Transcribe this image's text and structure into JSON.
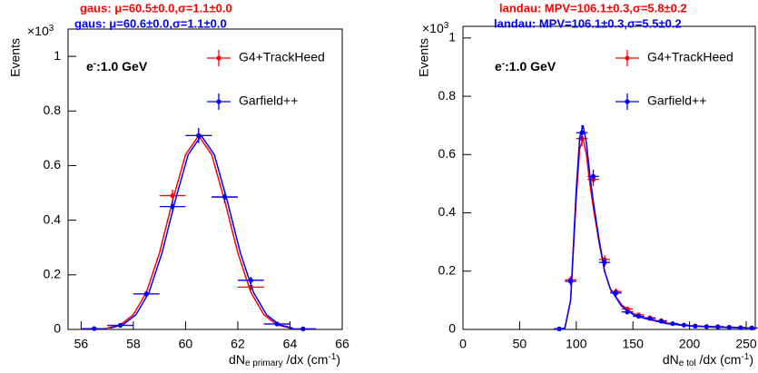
{
  "chart_data": [
    {
      "type": "errorbar",
      "ylabel": "Events",
      "xlabel": [
        "dN",
        "e primary",
        " /dx (cm",
        "-1",
        ")"
      ],
      "y_multiplier": [
        "×10",
        "3"
      ],
      "annotation": [
        "e",
        "-",
        ":1.0 GeV"
      ],
      "xlim": [
        55.5,
        66
      ],
      "xticks": [
        56,
        58,
        60,
        62,
        64,
        66
      ],
      "ylim": [
        0,
        1.1
      ],
      "yticks": [
        0,
        0.2,
        0.4,
        0.6,
        0.8,
        1
      ],
      "series": [
        {
          "name": "G4+TrackHeed",
          "color": "#ff0000",
          "fit_label": "gaus: μ=60.5±0.0,σ=1.1±0.0",
          "xerr": 0.5,
          "x": [
            56.5,
            57.5,
            58.5,
            59.5,
            60.5,
            61.5,
            62.5,
            63.5,
            64.5
          ],
          "values": [
            0.003,
            0.015,
            0.13,
            0.49,
            0.71,
            0.485,
            0.155,
            0.02,
            0.002
          ],
          "errors": [
            0.002,
            0.004,
            0.011,
            0.022,
            0.027,
            0.022,
            0.012,
            0.004,
            0.001
          ],
          "fit": {
            "x": [
              57,
              57.5,
              58,
              58.5,
              59,
              59.5,
              60,
              60.5,
              61,
              61.5,
              62,
              62.5,
              63,
              63.5,
              64
            ],
            "values": [
              0.005,
              0.017,
              0.054,
              0.136,
              0.28,
              0.47,
              0.64,
              0.71,
              0.64,
              0.47,
              0.28,
              0.136,
              0.054,
              0.017,
              0.005
            ]
          }
        },
        {
          "name": "Garfield++",
          "color": "#0000ff",
          "fit_label": "gaus: μ=60.6±0.0,σ=1.1±0.0",
          "xerr": 0.5,
          "x": [
            56.5,
            57.5,
            58.5,
            59.5,
            60.5,
            61.5,
            62.5,
            63.5,
            64.5
          ],
          "values": [
            0.003,
            0.015,
            0.13,
            0.45,
            0.71,
            0.485,
            0.18,
            0.02,
            0.002
          ],
          "errors": [
            0.002,
            0.004,
            0.011,
            0.021,
            0.027,
            0.022,
            0.013,
            0.004,
            0.001
          ],
          "fit": {
            "x": [
              57.1,
              57.6,
              58.1,
              58.6,
              59.1,
              59.6,
              60.1,
              60.6,
              61.1,
              61.6,
              62.1,
              62.6,
              63.1,
              63.6,
              64.1
            ],
            "values": [
              0.005,
              0.017,
              0.054,
              0.136,
              0.28,
              0.47,
              0.64,
              0.71,
              0.64,
              0.47,
              0.28,
              0.136,
              0.054,
              0.017,
              0.005
            ]
          }
        }
      ]
    },
    {
      "type": "errorbar",
      "ylabel": "Events",
      "xlabel": [
        "dN",
        "e tol",
        " /dx (cm",
        "-1",
        ")"
      ],
      "y_multiplier": [
        "×10",
        "3"
      ],
      "annotation": [
        "e",
        "-",
        ":1.0 GeV"
      ],
      "xlim": [
        0,
        258
      ],
      "xticks": [
        0,
        50,
        100,
        150,
        200,
        250
      ],
      "ylim": [
        0,
        1.04
      ],
      "yticks": [
        0,
        0.2,
        0.4,
        0.6,
        0.8,
        1
      ],
      "series": [
        {
          "name": "G4+TrackHeed",
          "color": "#ff0000",
          "fit_label": "landau: MPV=106.1±0.3,σ=5.8±0.2",
          "xerr": 5,
          "x": [
            85,
            95,
            105,
            115,
            125,
            135,
            145,
            155,
            165,
            175,
            185,
            195,
            205,
            215,
            225,
            235,
            245,
            255
          ],
          "values": [
            0.002,
            0.17,
            0.655,
            0.515,
            0.24,
            0.13,
            0.07,
            0.05,
            0.04,
            0.03,
            0.02,
            0.015,
            0.012,
            0.01,
            0.01,
            0.008,
            0.006,
            0.005
          ],
          "errors": [
            0.001,
            0.013,
            0.026,
            0.023,
            0.015,
            0.011,
            0.008,
            0.007,
            0.006,
            0.005,
            0.004,
            0.004,
            0.003,
            0.003,
            0.003,
            0.003,
            0.002,
            0.002
          ],
          "fit": {
            "x": [
              85,
              90,
              95,
              100,
              103,
              106,
              109,
              112,
              115,
              120,
              125,
              130,
              140,
              150,
              160,
              180,
              200,
              220,
              250
            ],
            "values": [
              0,
              0.005,
              0.1,
              0.45,
              0.62,
              0.655,
              0.6,
              0.5,
              0.42,
              0.3,
              0.2,
              0.14,
              0.085,
              0.055,
              0.04,
              0.022,
              0.013,
              0.009,
              0.006
            ]
          }
        },
        {
          "name": "Garfield++",
          "color": "#0000ff",
          "fit_label": "landau: MPV=106.1±0.3,σ=5.5±0.2",
          "xerr": 5,
          "x": [
            85,
            95,
            105,
            115,
            125,
            135,
            145,
            155,
            165,
            175,
            185,
            195,
            205,
            215,
            225,
            235,
            245,
            255
          ],
          "values": [
            0.002,
            0.165,
            0.675,
            0.525,
            0.23,
            0.125,
            0.06,
            0.045,
            0.038,
            0.028,
            0.02,
            0.015,
            0.011,
            0.01,
            0.009,
            0.007,
            0.006,
            0.005
          ],
          "errors": [
            0.001,
            0.013,
            0.026,
            0.023,
            0.015,
            0.011,
            0.008,
            0.007,
            0.006,
            0.005,
            0.004,
            0.004,
            0.003,
            0.003,
            0.003,
            0.003,
            0.002,
            0.002
          ],
          "fit": {
            "x": [
              85,
              90,
              95,
              100,
              103,
              106,
              109,
              112,
              115,
              120,
              125,
              130,
              140,
              150,
              160,
              180,
              200,
              220,
              250
            ],
            "values": [
              0,
              0.005,
              0.1,
              0.48,
              0.66,
              0.7,
              0.64,
              0.53,
              0.44,
              0.31,
              0.2,
              0.14,
              0.08,
              0.052,
              0.038,
              0.02,
              0.012,
              0.008,
              0.005
            ]
          }
        }
      ]
    }
  ]
}
